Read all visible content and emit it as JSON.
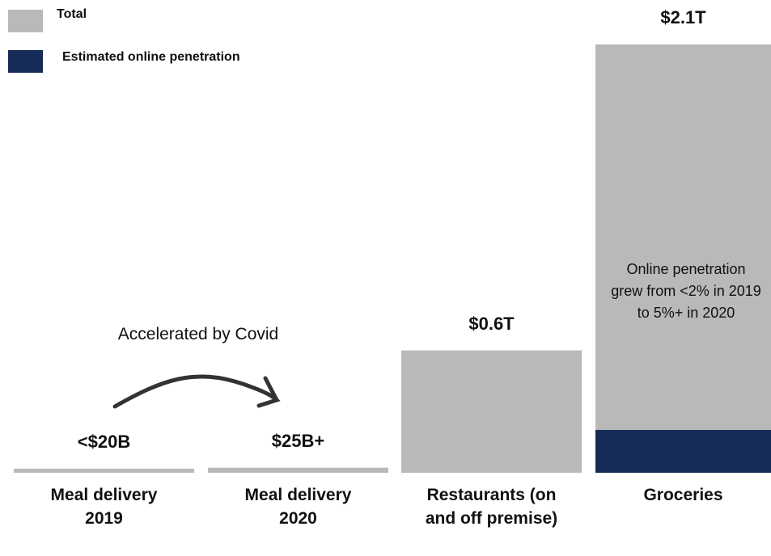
{
  "chart_data": {
    "type": "bar",
    "categories": [
      "Meal delivery 2019",
      "Meal delivery 2020",
      "Restaurants (on and off premise)",
      "Groceries"
    ],
    "series": [
      {
        "name": "Total",
        "color": "#b9b9b9",
        "values": [
          0.02,
          0.025,
          0.6,
          2.1
        ],
        "value_labels": [
          "<$20B",
          "$25B+",
          "$0.6T",
          "$2.1T"
        ]
      },
      {
        "name": "Estimated online penetration",
        "color": "#162c57",
        "values": [
          null,
          null,
          null,
          0.21
        ]
      }
    ],
    "ylim": [
      0,
      2.1
    ],
    "annotations": [
      "Accelerated by Covid",
      "Online penetration grew from <2% in 2019 to 5%+ in 2020"
    ]
  }
}
